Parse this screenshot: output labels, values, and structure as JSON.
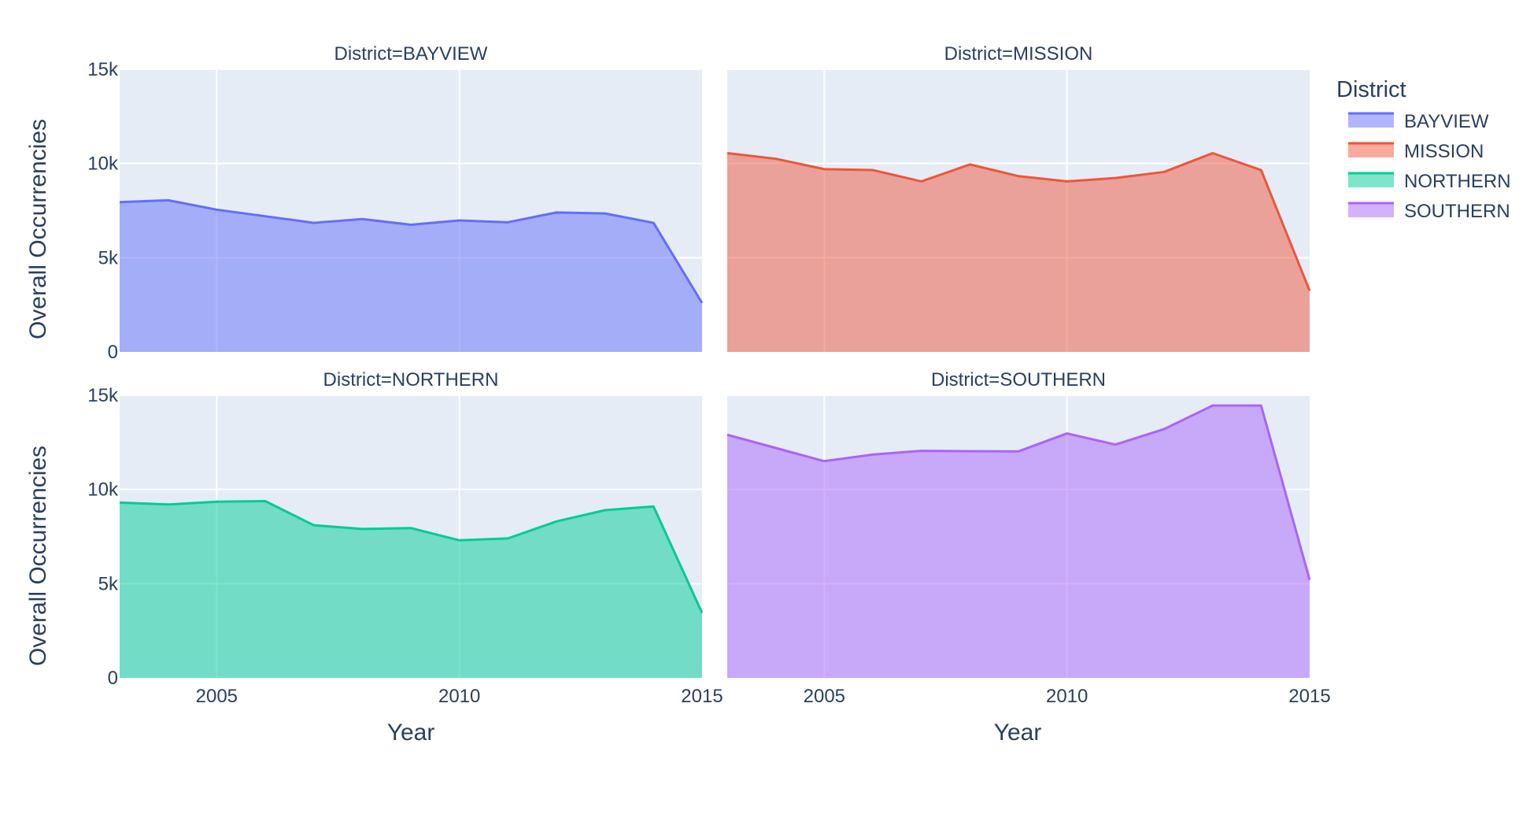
{
  "chart_data": {
    "type": "area",
    "xlabel": "Year",
    "ylabel": "Overall Occurrencies",
    "xlim": [
      2003,
      2015
    ],
    "ylim": [
      0,
      15000
    ],
    "x_ticks": [
      2005,
      2010,
      2015
    ],
    "x_tick_labels": [
      "2005",
      "2010",
      "2015"
    ],
    "y_ticks": [
      0,
      5000,
      10000,
      15000
    ],
    "y_tick_labels": [
      "0",
      "5k",
      "10k",
      "15k"
    ],
    "grid": true,
    "legend": {
      "title": "District",
      "placement": "right",
      "entries": [
        {
          "label": "BAYVIEW",
          "color": "#636efa"
        },
        {
          "label": "MISSION",
          "color": "#EF553B"
        },
        {
          "label": "NORTHERN",
          "color": "#00cc96"
        },
        {
          "label": "SOUTHERN",
          "color": "#ab63fa"
        }
      ]
    },
    "x": [
      2003,
      2004,
      2005,
      2006,
      2007,
      2008,
      2009,
      2010,
      2011,
      2012,
      2013,
      2014,
      2015
    ],
    "facets": [
      {
        "title": "District=BAYVIEW",
        "name": "BAYVIEW",
        "color": "#636efa",
        "values": [
          7950,
          8050,
          7550,
          7200,
          6850,
          7050,
          6750,
          6980,
          6880,
          7400,
          7350,
          6850,
          2600
        ]
      },
      {
        "title": "District=MISSION",
        "name": "MISSION",
        "color": "#EF553B",
        "values": [
          10550,
          10250,
          9700,
          9650,
          9050,
          9950,
          9330,
          9050,
          9230,
          9550,
          10550,
          9650,
          3250
        ]
      },
      {
        "title": "District=NORTHERN",
        "name": "NORTHERN",
        "color": "#00cc96",
        "values": [
          9300,
          9200,
          9350,
          9380,
          8100,
          7900,
          7950,
          7300,
          7400,
          8300,
          8900,
          9100,
          3450
        ]
      },
      {
        "title": "District=SOUTHERN",
        "name": "SOUTHERN",
        "color": "#ab63fa",
        "values": [
          12900,
          12200,
          11500,
          11850,
          12050,
          12030,
          12020,
          12970,
          12380,
          13200,
          14450,
          14450,
          5200
        ]
      }
    ]
  }
}
